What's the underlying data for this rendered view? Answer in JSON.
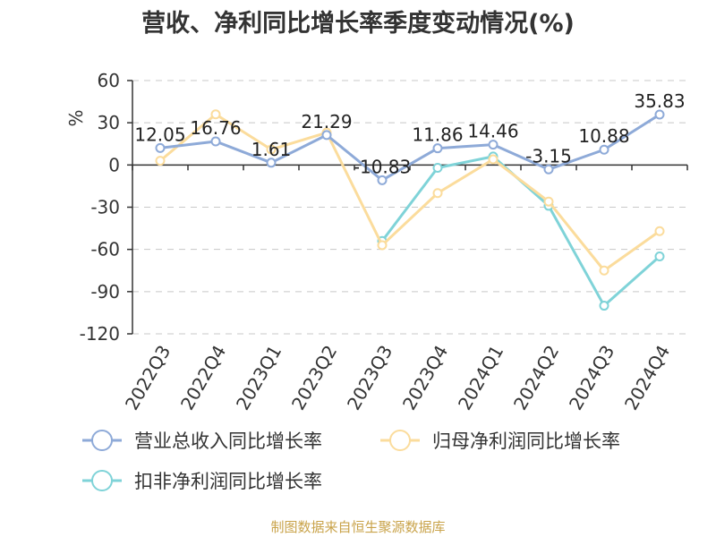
{
  "title": "营收、净利同比增长率季度变动情况(%)",
  "source": "制图数据来自恒生聚源数据库",
  "chart_data": {
    "type": "line",
    "title": "营收、净利同比增长率季度变动情况(%)",
    "ylabel": "%",
    "xlabel": "",
    "ylim": [
      -120,
      60
    ],
    "yticks": [
      60,
      30,
      0,
      -30,
      -60,
      -90,
      -120
    ],
    "categories": [
      "2022Q3",
      "2022Q4",
      "2023Q1",
      "2023Q2",
      "2023Q3",
      "2023Q4",
      "2024Q1",
      "2024Q2",
      "2024Q3",
      "2024Q4"
    ],
    "grid": true,
    "legend_position": "bottom",
    "series": [
      {
        "name": "营业总收入同比增长率",
        "color": "#8eaad8",
        "values": [
          12.05,
          16.76,
          1.61,
          21.29,
          -10.83,
          11.86,
          14.46,
          -3.15,
          10.88,
          35.83
        ],
        "labels": [
          "12.05",
          "16.76",
          "1.61",
          "21.29",
          "-10.83",
          "11.86",
          "14.46",
          "-3.15",
          "10.88",
          "35.83"
        ]
      },
      {
        "name": "归母净利润同比增长率",
        "color": "#fbdc9c",
        "values": [
          3,
          36,
          11,
          23,
          -57,
          -20,
          4,
          -26,
          -75,
          -47
        ]
      },
      {
        "name": "扣非净利润同比增长率",
        "color": "#7fd3d8",
        "values": [
          null,
          null,
          null,
          null,
          -54,
          -2,
          6,
          -29,
          -100,
          -65
        ]
      }
    ]
  }
}
